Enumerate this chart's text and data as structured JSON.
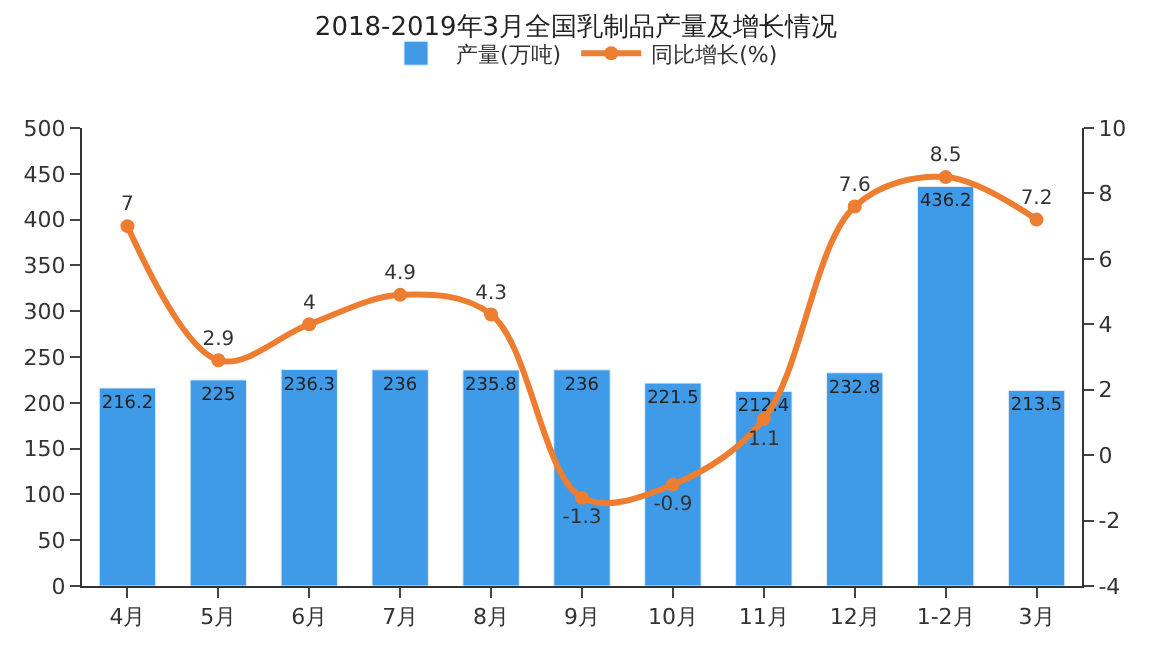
{
  "chart_data": {
    "type": "bar",
    "title": "2018-2019年3月全国乳制品产量及增长情况",
    "categories": [
      "4月",
      "5月",
      "6月",
      "7月",
      "8月",
      "9月",
      "10月",
      "11月",
      "12月",
      "1-2月",
      "3月"
    ],
    "series": [
      {
        "name": "产量(万吨)",
        "color": "#3f9ae8",
        "values": [
          216.2,
          225,
          236.3,
          236,
          235.8,
          236,
          221.5,
          212.4,
          232.8,
          436.2,
          213.5
        ]
      },
      {
        "name": "同比增长(%)",
        "type": "line",
        "axis": "y2",
        "color": "#ed7d31",
        "values": [
          7,
          2.9,
          4,
          4.9,
          4.3,
          -1.3,
          -0.9,
          1.1,
          7.6,
          8.5,
          7.2
        ]
      }
    ],
    "ylim": [
      0,
      500
    ],
    "yticks": [
      0,
      50,
      100,
      150,
      200,
      250,
      300,
      350,
      400,
      450,
      500
    ],
    "y2lim": [
      -4,
      10
    ],
    "y2ticks": [
      -4,
      -2,
      0,
      2,
      4,
      6,
      8,
      10
    ],
    "data_labels": true,
    "legend": "top",
    "marker": "circle",
    "line_style": "solid"
  }
}
